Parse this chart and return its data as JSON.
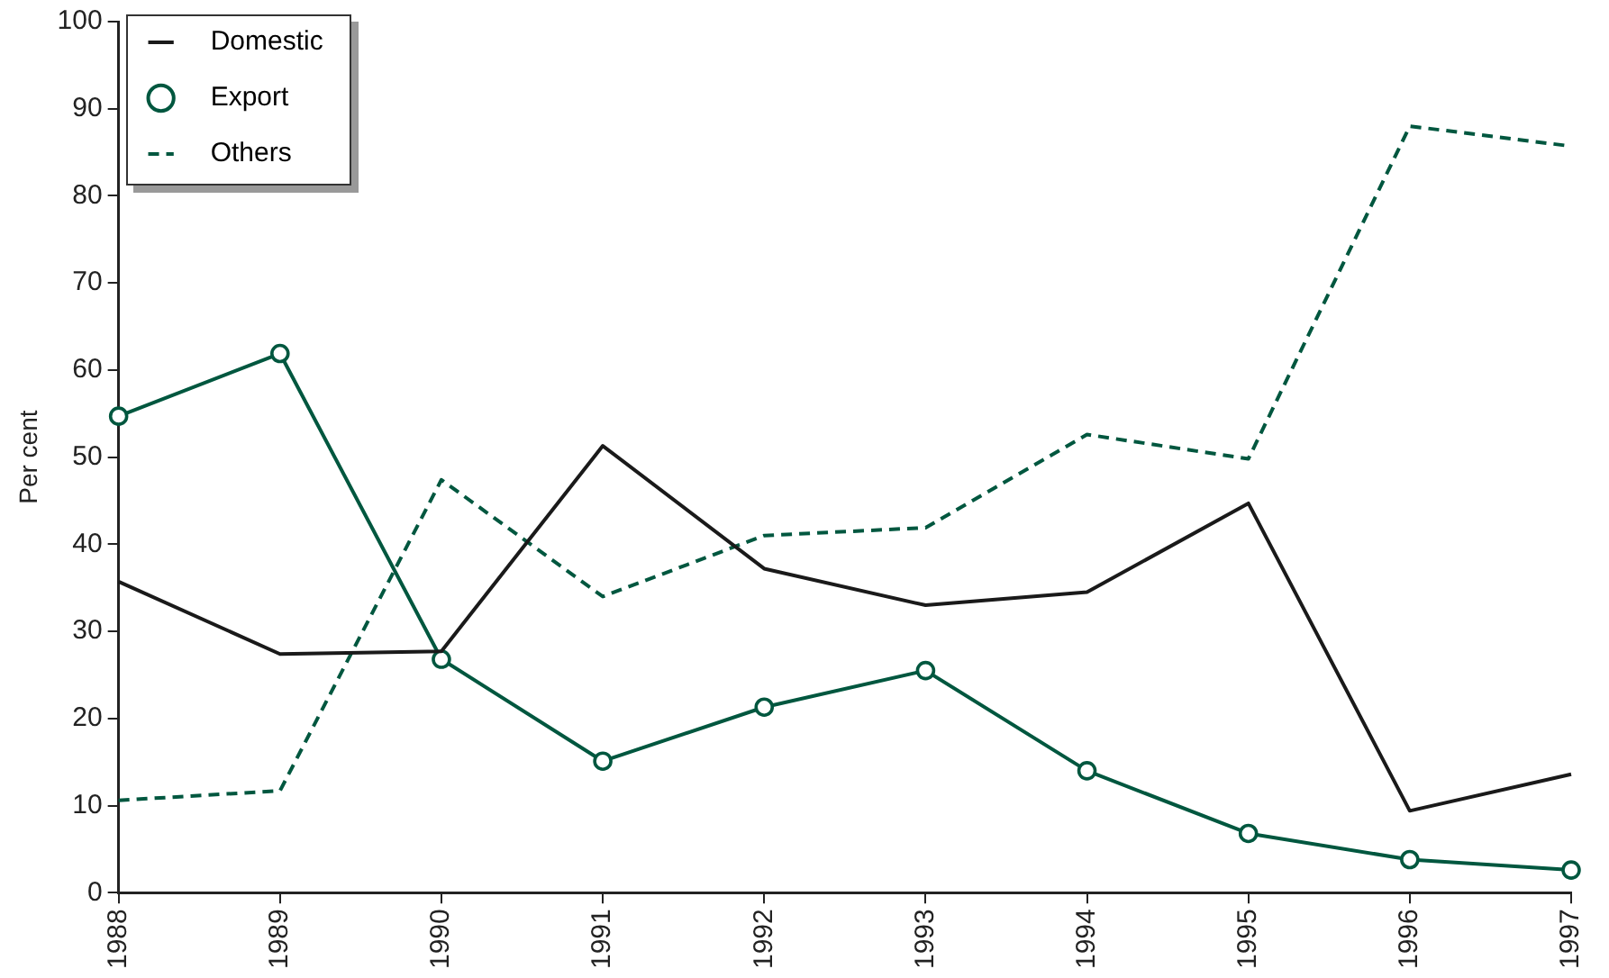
{
  "chart_data": {
    "type": "line",
    "ylabel": "Per cent",
    "categories": [
      "1988",
      "1989",
      "1990",
      "1991",
      "1992",
      "1993",
      "1994",
      "1995",
      "1996",
      "1997"
    ],
    "series": [
      {
        "name": "Domestic",
        "color": "#1a1a1a",
        "marker": "none",
        "line_style": "solid",
        "values": [
          35.7,
          27.4,
          27.7,
          51.3,
          37.2,
          33,
          34.5,
          44.7,
          9.4,
          13.6
        ]
      },
      {
        "name": "Export",
        "color": "#00573f",
        "marker": "circle",
        "line_style": "solid",
        "values": [
          54.7,
          61.9,
          26.8,
          15.1,
          21.3,
          25.5,
          14,
          6.8,
          3.8,
          2.6
        ]
      },
      {
        "name": "Others",
        "color": "#00573f",
        "marker": "none",
        "line_style": "dashed",
        "values": [
          10.6,
          11.7,
          47.4,
          34,
          41,
          41.9,
          52.6,
          49.8,
          88,
          85.7
        ]
      }
    ],
    "ylim": [
      0,
      100
    ],
    "yticks": [
      0,
      10,
      20,
      30,
      40,
      50,
      60,
      70,
      80,
      90,
      100
    ],
    "grid": false,
    "legend": "top left"
  }
}
